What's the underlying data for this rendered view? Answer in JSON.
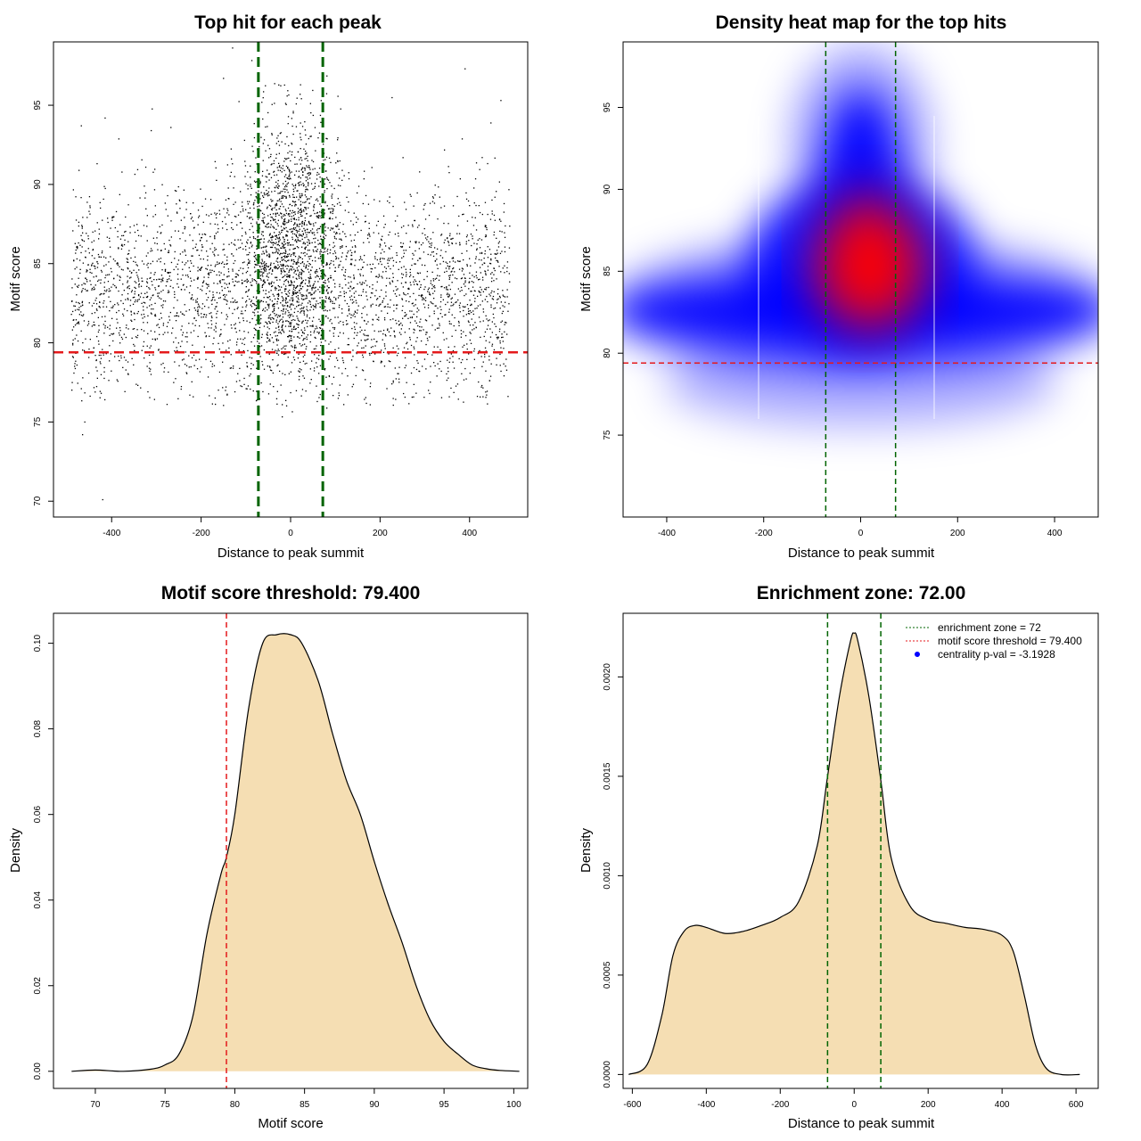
{
  "chart_data": [
    {
      "type": "scatter",
      "title": "Top hit for each peak",
      "xlabel": "Distance to peak summit",
      "ylabel": "Motif score",
      "xlim": [
        -530,
        530
      ],
      "ylim": [
        69,
        99
      ],
      "xticks": [
        -400,
        -200,
        0,
        200,
        400
      ],
      "yticks": [
        70,
        75,
        80,
        85,
        90,
        95
      ],
      "vlines": [
        -72,
        72
      ],
      "hline": 79.4,
      "vline_color": "#006400",
      "hline_color": "#e41a1c",
      "points_color": "#000000"
    },
    {
      "type": "heatmap",
      "title": "Density heat map for the top hits",
      "xlabel": "Distance to peak summit",
      "ylabel": "Motif score",
      "xlim": [
        -490,
        490
      ],
      "ylim": [
        70,
        99
      ],
      "xticks": [
        -400,
        -200,
        0,
        200,
        400
      ],
      "yticks": [
        75,
        80,
        85,
        90,
        95
      ],
      "vlines": [
        -72,
        72
      ],
      "hline": 79.4,
      "high_density_center": [
        10,
        85.5
      ],
      "colors": [
        "#ffffff",
        "#0000ff",
        "#ff0000"
      ]
    },
    {
      "type": "area",
      "title": "Motif score threshold: 79.400",
      "xlabel": "Motif score",
      "ylabel": "Density",
      "xlim": [
        67,
        101
      ],
      "ylim": [
        -0.004,
        0.107
      ],
      "xticks": [
        70,
        75,
        80,
        85,
        90,
        95,
        100
      ],
      "yticks": [
        0.0,
        0.02,
        0.04,
        0.06,
        0.08,
        0.1
      ],
      "ytick_labels": [
        "0.00",
        "0.02",
        "0.04",
        "0.06",
        "0.08",
        "0.10"
      ],
      "x": [
        68.3,
        70,
        72,
        74,
        75,
        76,
        77,
        78,
        79,
        79.4,
        80,
        81,
        82,
        83,
        84,
        84.8,
        86,
        87,
        88,
        89,
        90,
        91,
        92,
        93,
        94,
        95,
        96,
        97,
        98,
        99,
        100.4
      ],
      "y": [
        0.0,
        0.0003,
        0.0,
        0.0005,
        0.0015,
        0.004,
        0.013,
        0.032,
        0.046,
        0.05,
        0.06,
        0.085,
        0.1,
        0.102,
        0.102,
        0.1,
        0.091,
        0.079,
        0.068,
        0.06,
        0.049,
        0.039,
        0.03,
        0.02,
        0.012,
        0.007,
        0.004,
        0.0015,
        0.0006,
        0.0002,
        0.0
      ],
      "vline": 79.4,
      "fill_color": "#f5deb3",
      "vline_color": "#e41a1c"
    },
    {
      "type": "area",
      "title": "Enrichment zone: 72.00",
      "xlabel": "Distance to peak summit",
      "ylabel": "Density",
      "xlim": [
        -625,
        660
      ],
      "ylim": [
        -7e-05,
        0.00232
      ],
      "xticks": [
        -600,
        -400,
        -200,
        0,
        200,
        400,
        600
      ],
      "yticks": [
        0.0,
        0.0005,
        0.001,
        0.0015,
        0.002
      ],
      "ytick_labels": [
        "0.0000",
        "0.0005",
        "0.0010",
        "0.0015",
        "0.0020"
      ],
      "x": [
        -610,
        -560,
        -520,
        -490,
        -460,
        -430,
        -400,
        -350,
        -300,
        -250,
        -200,
        -150,
        -100,
        -72,
        -40,
        -10,
        0,
        10,
        40,
        72,
        100,
        150,
        200,
        250,
        300,
        350,
        400,
        430,
        460,
        490,
        520,
        560,
        610
      ],
      "y": [
        0.0,
        5e-05,
        0.0003,
        0.0006,
        0.00072,
        0.00075,
        0.00074,
        0.00071,
        0.00072,
        0.00075,
        0.00079,
        0.00087,
        0.00115,
        0.0015,
        0.0019,
        0.00218,
        0.00222,
        0.00218,
        0.0019,
        0.00148,
        0.00109,
        0.00085,
        0.00078,
        0.00076,
        0.00074,
        0.00073,
        0.0007,
        0.00062,
        0.0004,
        0.00015,
        3e-05,
        0.0,
        0.0
      ],
      "vlines": [
        -72,
        72
      ],
      "fill_color": "#f5deb3",
      "vline_color": "#006400",
      "legend": [
        {
          "label": "enrichment zone = 72",
          "color": "#006400",
          "style": "dotted"
        },
        {
          "label": "motif score threshold = 79.400",
          "color": "#e41a1c",
          "style": "dotted"
        },
        {
          "label": "centrality p-val = -3.1928",
          "color": "#0000ff",
          "style": "point"
        }
      ]
    }
  ]
}
